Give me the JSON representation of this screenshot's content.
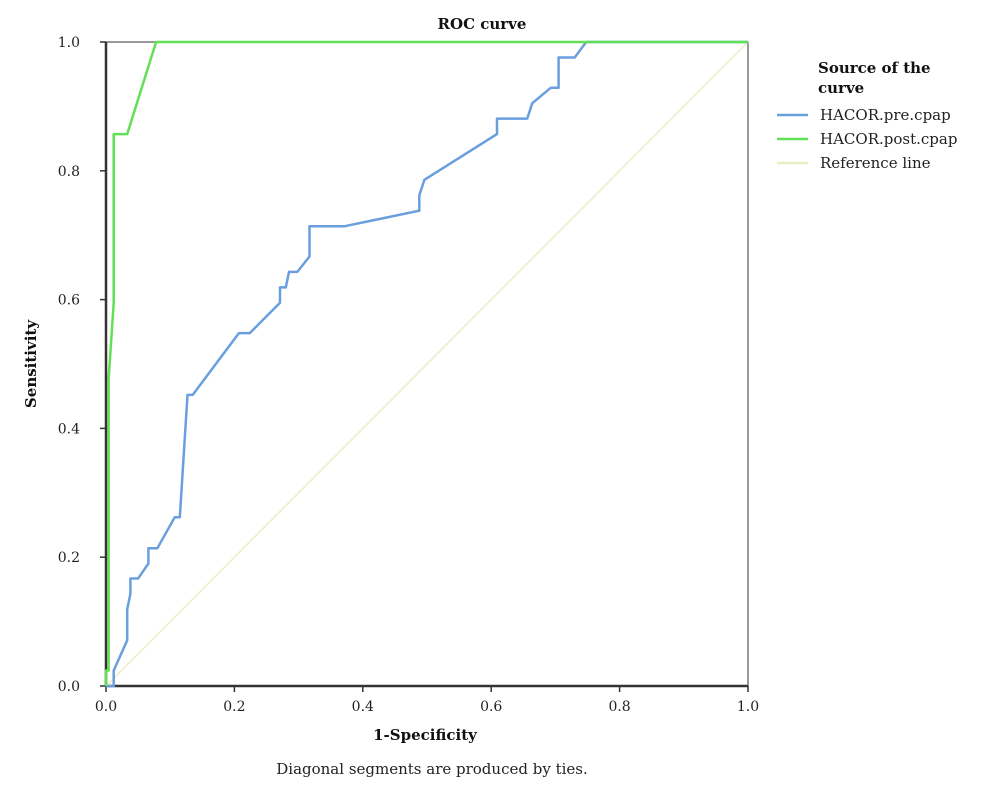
{
  "chart_data": {
    "type": "line",
    "title": "ROC curve",
    "xlabel": "1-Specificity",
    "ylabel": "Sensitivity",
    "xlim": [
      0,
      1
    ],
    "ylim": [
      0,
      1
    ],
    "xticks": [
      "0.0",
      "0.2",
      "0.4",
      "0.6",
      "0.8",
      "1.0"
    ],
    "yticks": [
      "0.0",
      "0.2",
      "0.4",
      "0.6",
      "0.8",
      "1.0"
    ],
    "grid": false,
    "legend": {
      "title_line1": "Source of the",
      "title_line2": "curve",
      "placement": "right"
    },
    "footnote": "Diagonal segments are produced by ties.",
    "series": [
      {
        "name": "HACOR.pre.cpap",
        "color": "#6a9fde",
        "points": [
          [
            0.0,
            0.0
          ],
          [
            0.0,
            0.0
          ],
          [
            0.012,
            0.0
          ],
          [
            0.012,
            0.024
          ],
          [
            0.033,
            0.071
          ],
          [
            0.033,
            0.119
          ],
          [
            0.038,
            0.143
          ],
          [
            0.038,
            0.167
          ],
          [
            0.05,
            0.167
          ],
          [
            0.066,
            0.19
          ],
          [
            0.066,
            0.214
          ],
          [
            0.08,
            0.214
          ],
          [
            0.107,
            0.262
          ],
          [
            0.115,
            0.262
          ],
          [
            0.127,
            0.452
          ],
          [
            0.135,
            0.452
          ],
          [
            0.207,
            0.548
          ],
          [
            0.224,
            0.548
          ],
          [
            0.271,
            0.595
          ],
          [
            0.271,
            0.619
          ],
          [
            0.28,
            0.619
          ],
          [
            0.285,
            0.643
          ],
          [
            0.298,
            0.643
          ],
          [
            0.317,
            0.667
          ],
          [
            0.317,
            0.714
          ],
          [
            0.372,
            0.714
          ],
          [
            0.488,
            0.738
          ],
          [
            0.488,
            0.762
          ],
          [
            0.496,
            0.786
          ],
          [
            0.609,
            0.857
          ],
          [
            0.609,
            0.881
          ],
          [
            0.656,
            0.881
          ],
          [
            0.664,
            0.905
          ],
          [
            0.693,
            0.929
          ],
          [
            0.705,
            0.929
          ],
          [
            0.705,
            0.976
          ],
          [
            0.73,
            0.976
          ],
          [
            0.748,
            1.0
          ],
          [
            1.0,
            1.0
          ]
        ]
      },
      {
        "name": "HACOR.post.cpap",
        "color": "#62e055",
        "points": [
          [
            0.0,
            0.0
          ],
          [
            0.0,
            0.024
          ],
          [
            0.004,
            0.024
          ],
          [
            0.004,
            0.476
          ],
          [
            0.012,
            0.595
          ],
          [
            0.012,
            0.857
          ],
          [
            0.033,
            0.857
          ],
          [
            0.078,
            1.0
          ],
          [
            1.0,
            1.0
          ]
        ]
      },
      {
        "name": "Reference line",
        "color": "#ebeec4",
        "points": [
          [
            0.0,
            0.0
          ],
          [
            1.0,
            1.0
          ]
        ]
      }
    ]
  }
}
